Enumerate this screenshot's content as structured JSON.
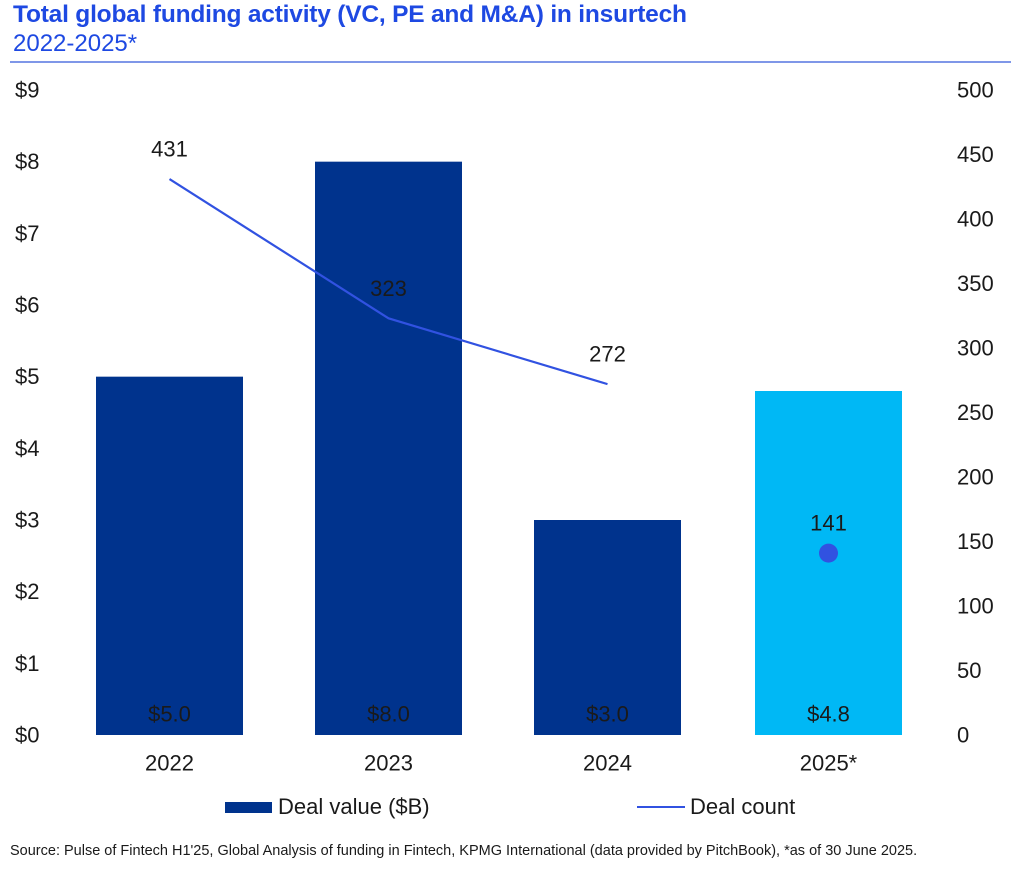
{
  "header": {
    "title": "Total global funding activity (VC, PE and M&A) in insurtech",
    "subtitle": "2022-2025*"
  },
  "legend": {
    "deal_value_label": "Deal value ($B)",
    "deal_count_label": "Deal count"
  },
  "footer": {
    "source": "Source: Pulse of Fintech H1'25, Global Analysis of funding in Fintech, KPMG International (data provided by PitchBook), *as of 30 June 2025."
  },
  "colors": {
    "title": "#1E49E2",
    "divider": "#7F97E8",
    "bar_dark": "#00338D",
    "bar_light": "#00B8F5",
    "line": "#3152E1",
    "text": "#1A1A1A",
    "bar_value_label": "#FFFFFF"
  },
  "chart_data": {
    "type": "bar",
    "title": "Total global funding activity (VC, PE and M&A) in insurtech",
    "subtitle": "2022-2025*",
    "categories": [
      "2022",
      "2023",
      "2024",
      "2025*"
    ],
    "series": [
      {
        "name": "Deal value ($B)",
        "type": "bar",
        "axis": "left",
        "values": [
          5.0,
          8.0,
          3.0,
          4.8
        ],
        "value_labels": [
          "$5.0",
          "$8.0",
          "$3.0",
          "$4.8"
        ],
        "bar_colors": [
          "#00338D",
          "#00338D",
          "#00338D",
          "#00B8F5"
        ]
      },
      {
        "name": "Deal count",
        "type": "line",
        "axis": "right",
        "values": [
          431,
          323,
          272,
          141
        ],
        "value_labels": [
          "431",
          "323",
          "272",
          "141"
        ],
        "label_colors": [
          "#1A1A1A",
          "#FFFFFF",
          "#1A1A1A",
          "#1A1A1A"
        ],
        "line_point_indices": [
          0,
          1,
          2
        ],
        "marker_only_indices": [
          3
        ]
      }
    ],
    "axes": {
      "left": {
        "ticks": [
          "$9",
          "$8",
          "$7",
          "$6",
          "$5",
          "$4",
          "$3",
          "$2",
          "$1",
          "$0"
        ],
        "min": 0,
        "max": 9
      },
      "right": {
        "ticks": [
          "500",
          "450",
          "400",
          "350",
          "300",
          "250",
          "200",
          "150",
          "100",
          "50",
          "0"
        ],
        "min": 0,
        "max": 500
      }
    },
    "grid": false,
    "legend_position": "bottom"
  }
}
